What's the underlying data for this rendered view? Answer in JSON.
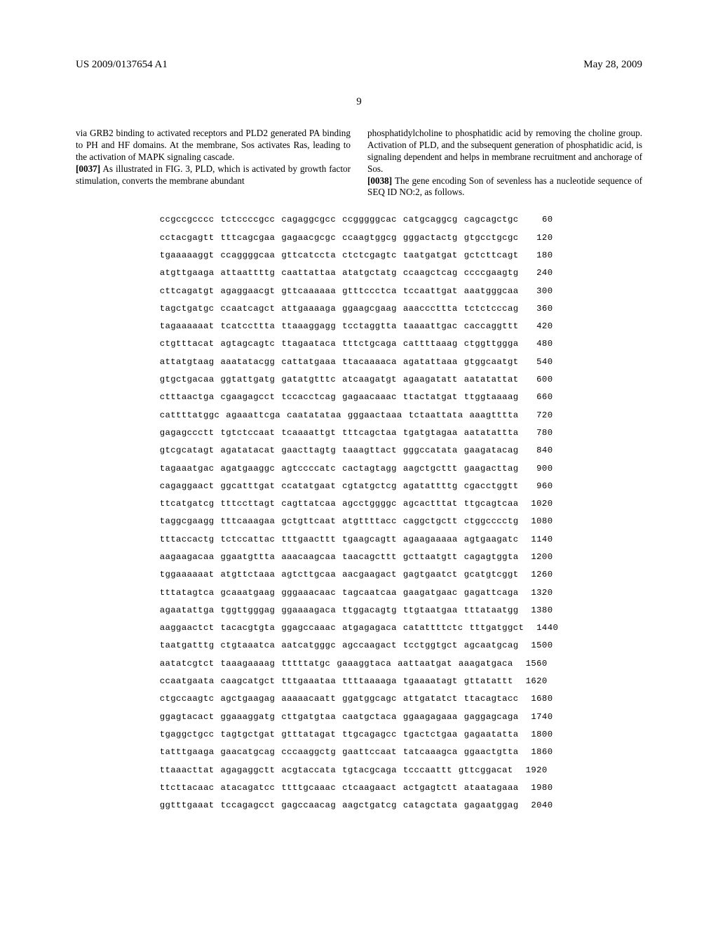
{
  "header": {
    "left": "US 2009/0137654 A1",
    "right": "May 28, 2009"
  },
  "page_number": "9",
  "left_col": {
    "p1": "via GRB2 binding to activated receptors and PLD2 generated PA binding to PH and HF domains. At the membrane, Sos activates Ras, leading to the activation of MAPK signaling cascade.",
    "p2_num": "[0037]",
    "p2": " As illustrated in FIG. 3, PLD, which is activated by growth factor stimulation, converts the membrane abundant"
  },
  "right_col": {
    "p1": "phosphatidylcholine to phosphatidic acid by removing the choline group. Activation of PLD, and the subsequent generation of phosphatidic acid, is signaling dependent and helps in membrane recruitment and anchorage of Sos.",
    "p2_num": "[0038]",
    "p2": " The gene encoding Son of sevenless has a nucleotide sequence of SEQ ID NO:2, as follows."
  },
  "sequence": [
    {
      "groups": [
        "ccgccgcccc",
        "tctccccgcc",
        "cagaggcgcc",
        "ccgggggcac",
        "catgcaggcg",
        "cagcagctgc"
      ],
      "num": "60"
    },
    {
      "groups": [
        "cctacgagtt",
        "tttcagcgaa",
        "gagaacgcgc",
        "ccaagtggcg",
        "gggactactg",
        "gtgcctgcgc"
      ],
      "num": "120"
    },
    {
      "groups": [
        "tgaaaaaggt",
        "ccaggggcaa",
        "gttcatccta",
        "ctctcgagtc",
        "taatgatgat",
        "gctcttcagt"
      ],
      "num": "180"
    },
    {
      "groups": [
        "atgttgaaga",
        "attaattttg",
        "caattattaa",
        "atatgctatg",
        "ccaagctcag",
        "ccccgaagtg"
      ],
      "num": "240"
    },
    {
      "groups": [
        "cttcagatgt",
        "agaggaacgt",
        "gttcaaaaaa",
        "gtttccctca",
        "tccaattgat",
        "aaatgggcaa"
      ],
      "num": "300"
    },
    {
      "groups": [
        "tagctgatgc",
        "ccaatcagct",
        "attgaaaaga",
        "ggaagcgaag",
        "aaacccttta",
        "tctctcccag"
      ],
      "num": "360"
    },
    {
      "groups": [
        "tagaaaaaat",
        "tcatccttta",
        "ttaaaggagg",
        "tcctaggtta",
        "taaaattgac",
        "caccaggttt"
      ],
      "num": "420"
    },
    {
      "groups": [
        "ctgtttacat",
        "agtagcagtc",
        "ttagaataca",
        "tttctgcaga",
        "cattttaaag",
        "ctggttggga"
      ],
      "num": "480"
    },
    {
      "groups": [
        "attatgtaag",
        "aaatatacgg",
        "cattatgaaa",
        "ttacaaaaca",
        "agatattaaa",
        "gtggcaatgt"
      ],
      "num": "540"
    },
    {
      "groups": [
        "gtgctgacaa",
        "ggtattgatg",
        "gatatgtttc",
        "atcaagatgt",
        "agaagatatt",
        "aatatattat"
      ],
      "num": "600"
    },
    {
      "groups": [
        "ctttaactga",
        "cgaagagcct",
        "tccacctcag",
        "gagaacaaac",
        "ttactatgat",
        "ttggtaaaag"
      ],
      "num": "660"
    },
    {
      "groups": [
        "cattttatggc",
        "agaaattcga",
        "caatatataa",
        "gggaactaaa",
        "tctaattata",
        "aaagtttta"
      ],
      "num": "720"
    },
    {
      "groups": [
        "gagagccctt",
        "tgtctccaat",
        "tcaaaattgt",
        "tttcagctaa",
        "tgatgtagaa",
        "aatatattta"
      ],
      "num": "780"
    },
    {
      "groups": [
        "gtcgcatagt",
        "agatatacat",
        "gaacttagtg",
        "taaagttact",
        "gggccatata",
        "gaagatacag"
      ],
      "num": "840"
    },
    {
      "groups": [
        "tagaaatgac",
        "agatgaaggc",
        "agtccccatc",
        "cactagtagg",
        "aagctgcttt",
        "gaagacttag"
      ],
      "num": "900"
    },
    {
      "groups": [
        "cagaggaact",
        "ggcatttgat",
        "ccatatgaat",
        "cgtatgctcg",
        "agatattttg",
        "cgacctggtt"
      ],
      "num": "960"
    },
    {
      "groups": [
        "ttcatgatcg",
        "tttccttagt",
        "cagttatcaa",
        "agcctggggc",
        "agcactttat",
        "ttgcagtcaa"
      ],
      "num": "1020"
    },
    {
      "groups": [
        "taggcgaagg",
        "tttcaaagaa",
        "gctgttcaat",
        "atgttttacc",
        "caggctgctt",
        "ctggcccctg"
      ],
      "num": "1080"
    },
    {
      "groups": [
        "tttaccactg",
        "tctccattac",
        "tttgaacttt",
        "tgaagcagtt",
        "agaagaaaaa",
        "agtgaagatc"
      ],
      "num": "1140"
    },
    {
      "groups": [
        "aagaagacaa",
        "ggaatgttta",
        "aaacaagcaa",
        "taacagcttt",
        "gcttaatgtt",
        "cagagtggta"
      ],
      "num": "1200"
    },
    {
      "groups": [
        "tggaaaaaat",
        "atgttctaaa",
        "agtcttgcaa",
        "aacgaagact",
        "gagtgaatct",
        "gcatgtcggt"
      ],
      "num": "1260"
    },
    {
      "groups": [
        "tttatagtca",
        "gcaaatgaag",
        "gggaaacaac",
        "tagcaatcaa",
        "gaagatgaac",
        "gagattcaga"
      ],
      "num": "1320"
    },
    {
      "groups": [
        "agaatattga",
        "tggttgggag",
        "ggaaaagaca",
        "ttggacagtg",
        "ttgtaatgaa",
        "tttataatgg"
      ],
      "num": "1380"
    },
    {
      "groups": [
        "aaggaactct",
        "tacacgtgta",
        "ggagccaaac",
        "atgagagaca",
        "catattttctc",
        "tttgatggct"
      ],
      "num": "1440"
    },
    {
      "groups": [
        "taatgatttg",
        "ctgtaaatca",
        "aatcatgggc",
        "agccaagact",
        "tcctggtgct",
        "agcaatgcag"
      ],
      "num": "1500"
    },
    {
      "groups": [
        "aatatcgtct",
        "taaagaaaag",
        "tttttatgc",
        "gaaaggtaca",
        "aattaatgat",
        "aaagatgaca"
      ],
      "num": "1560"
    },
    {
      "groups": [
        "ccaatgaata",
        "caagcatgct",
        "tttgaaataa",
        "ttttaaaaga",
        "tgaaaatagt",
        "gttatattt"
      ],
      "num": "1620"
    },
    {
      "groups": [
        "ctgccaagtc",
        "agctgaagag",
        "aaaaacaatt",
        "ggatggcagc",
        "attgatatct",
        "ttacagtacc"
      ],
      "num": "1680"
    },
    {
      "groups": [
        "ggagtacact",
        "ggaaaggatg",
        "cttgatgtaa",
        "caatgctaca",
        "ggaagagaaa",
        "gaggagcaga"
      ],
      "num": "1740"
    },
    {
      "groups": [
        "tgaggctgcc",
        "tagtgctgat",
        "gtttatagat",
        "ttgcagagcc",
        "tgactctgaa",
        "gagaatatta"
      ],
      "num": "1800"
    },
    {
      "groups": [
        "tatttgaaga",
        "gaacatgcag",
        "cccaaggctg",
        "gaattccaat",
        "tatcaaagca",
        "ggaactgtta"
      ],
      "num": "1860"
    },
    {
      "groups": [
        "ttaaacttat",
        "agagaggctt",
        "acgtaccata",
        "tgtacgcaga",
        "tcccaattt",
        "gttcggacat"
      ],
      "num": "1920"
    },
    {
      "groups": [
        "ttcttacaac",
        "atacagatcc",
        "ttttgcaaac",
        "ctcaagaact",
        "actgagtctt",
        "ataatagaaa"
      ],
      "num": "1980"
    },
    {
      "groups": [
        "ggtttgaaat",
        "tccagagcct",
        "gagccaacag",
        "aagctgatcg",
        "catagctata",
        "gagaatggag"
      ],
      "num": "2040"
    }
  ]
}
